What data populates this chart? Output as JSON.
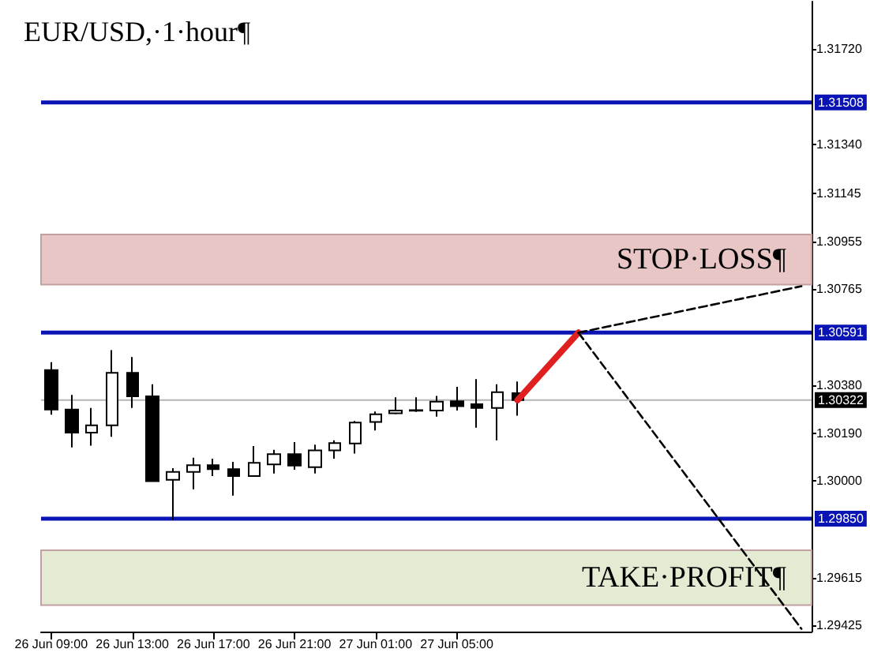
{
  "chart_data": {
    "type": "candlestick",
    "title": "EUR/USD,·1·hour¶",
    "categories": [
      "26 Jun 09:00",
      null,
      null,
      null,
      "26 Jun 13:00",
      null,
      null,
      null,
      "26 Jun 17:00",
      null,
      null,
      null,
      "26 Jun 21:00",
      null,
      null,
      null,
      "27 Jun 01:00",
      null,
      null,
      null,
      "27 Jun 05:00",
      null,
      null,
      null,
      null,
      null,
      null,
      null,
      null,
      null,
      null,
      null,
      null,
      null,
      null,
      null,
      null,
      null
    ],
    "ohlc": [
      [
        1.30442,
        1.30473,
        1.30264,
        1.30285
      ],
      [
        1.30285,
        1.30343,
        1.30134,
        1.30193
      ],
      [
        1.30193,
        1.30291,
        1.30141,
        1.30222
      ],
      [
        1.30222,
        1.30521,
        1.30176,
        1.30431
      ],
      [
        1.30431,
        1.30494,
        1.30291,
        1.30337
      ],
      [
        1.30337,
        1.30385,
        1.29999,
        1.29999
      ],
      [
        1.30005,
        1.30051,
        1.29845,
        1.30036
      ],
      [
        1.30036,
        1.30093,
        1.29967,
        1.30063
      ],
      [
        1.30063,
        1.30089,
        1.3002,
        1.30047
      ],
      [
        1.30047,
        1.30076,
        1.29942,
        1.3002
      ],
      [
        1.3002,
        1.30139,
        1.3002,
        1.30072
      ],
      [
        1.30066,
        1.30124,
        1.3003,
        1.30107
      ],
      [
        1.30107,
        1.30155,
        1.30045,
        1.30061
      ],
      [
        1.30055,
        1.30145,
        1.3003,
        1.30122
      ],
      [
        1.30122,
        1.30162,
        1.30089,
        1.30151
      ],
      [
        1.30149,
        1.30239,
        1.30109,
        1.30233
      ],
      [
        1.30235,
        1.30277,
        1.30201,
        1.30266
      ],
      [
        1.3027,
        1.30333,
        1.30266,
        1.30281
      ],
      [
        1.3028,
        1.30333,
        1.30275,
        1.30282
      ],
      [
        1.30281,
        1.30339,
        1.30256,
        1.30316
      ],
      [
        1.30318,
        1.30375,
        1.30281,
        1.30298
      ],
      [
        1.30306,
        1.30406,
        1.30212,
        1.30291
      ],
      [
        1.30291,
        1.30385,
        1.30162,
        1.30354
      ],
      [
        1.3035,
        1.30396,
        1.3026,
        1.30322
      ],
      null,
      null,
      null,
      null,
      null,
      null,
      null,
      null,
      null,
      null,
      null,
      null,
      null,
      null
    ],
    "series": [
      {
        "type": "line",
        "color": "#e02020",
        "line_style": "solid",
        "values": [
          null,
          null,
          null,
          null,
          null,
          null,
          null,
          null,
          null,
          null,
          null,
          null,
          null,
          null,
          null,
          null,
          null,
          null,
          null,
          null,
          null,
          null,
          null,
          1.30322,
          null,
          null,
          1.30591,
          null,
          null,
          null,
          null,
          null,
          null,
          null,
          null,
          null,
          null,
          null
        ]
      },
      {
        "type": "line",
        "color": "#000000",
        "line_style": "dashed",
        "values": [
          null,
          null,
          null,
          null,
          null,
          null,
          null,
          null,
          null,
          null,
          null,
          null,
          null,
          null,
          null,
          null,
          null,
          null,
          null,
          null,
          null,
          null,
          null,
          null,
          null,
          null,
          1.30591,
          null,
          null,
          null,
          null,
          null,
          null,
          null,
          null,
          null,
          null,
          1.30776
        ]
      },
      {
        "type": "line",
        "color": "#000000",
        "line_style": "dashed",
        "values": [
          null,
          null,
          null,
          null,
          null,
          null,
          null,
          null,
          null,
          null,
          null,
          null,
          null,
          null,
          null,
          null,
          null,
          null,
          null,
          null,
          null,
          null,
          null,
          null,
          null,
          null,
          1.30591,
          null,
          null,
          null,
          null,
          null,
          null,
          null,
          null,
          null,
          null,
          1.29411
        ]
      }
    ],
    "ylim": [
      1.294,
      1.3191
    ],
    "yticks": [
      {
        "value": 1.3172,
        "label": "1.31720"
      },
      {
        "value": 1.3134,
        "label": "1.31340"
      },
      {
        "value": 1.31145,
        "label": "1.31145"
      },
      {
        "value": 1.30955,
        "label": "1.30955"
      },
      {
        "value": 1.30765,
        "label": "1.30765"
      },
      {
        "value": 1.3038,
        "label": "1.30380"
      },
      {
        "value": 1.3019,
        "label": "1.30190"
      },
      {
        "value": 1.3,
        "label": "1.30000"
      },
      {
        "value": 1.29615,
        "label": "1.29615"
      },
      {
        "value": 1.29425,
        "label": "1.29425"
      }
    ],
    "ref_lines": [
      {
        "axis": "y",
        "value": 1.31508,
        "label": "1.31508",
        "color": "#0a14b4"
      },
      {
        "axis": "y",
        "value": 1.30591,
        "label": "1.30591",
        "color": "#0a14b4"
      },
      {
        "axis": "y",
        "value": 1.30322,
        "label": "1.30322",
        "color": "#b4b4b4"
      },
      {
        "axis": "y",
        "value": 1.2985,
        "label": "1.29850",
        "color": "#0a14b4"
      }
    ],
    "bands": [
      {
        "axis": "y",
        "from": 1.30782,
        "to": 1.30982,
        "label": "STOP·LOSS¶",
        "color": "#e8c6c6"
      },
      {
        "axis": "y",
        "from": 1.29505,
        "to": 1.29724,
        "label": "TAKE·PROFIT¶",
        "color": "#e3ebd3"
      }
    ]
  }
}
